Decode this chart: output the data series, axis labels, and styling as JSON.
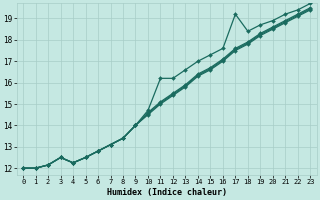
{
  "xlabel": "Humidex (Indice chaleur)",
  "xlim": [
    -0.5,
    23.5
  ],
  "ylim": [
    11.7,
    19.7
  ],
  "xticks": [
    0,
    1,
    2,
    3,
    4,
    5,
    6,
    7,
    8,
    9,
    10,
    11,
    12,
    13,
    14,
    15,
    16,
    17,
    18,
    19,
    20,
    21,
    22,
    23
  ],
  "yticks": [
    12,
    13,
    14,
    15,
    16,
    17,
    18,
    19
  ],
  "bg_color": "#c5e8e2",
  "grid_color": "#a8cdc7",
  "line_color": "#1a6b5f",
  "spike_x": [
    0,
    1,
    2,
    3,
    4,
    5,
    6,
    7,
    8,
    9,
    10,
    11,
    12,
    13,
    14,
    15,
    16,
    17,
    18,
    19,
    20,
    21,
    22,
    23
  ],
  "spike_y": [
    12.0,
    12.0,
    12.15,
    12.5,
    12.25,
    12.5,
    12.8,
    13.1,
    13.4,
    14.0,
    14.7,
    16.2,
    16.2,
    16.6,
    17.0,
    17.3,
    17.6,
    19.2,
    18.4,
    18.7,
    18.9,
    19.2,
    19.4,
    19.7
  ],
  "line2_x": [
    0,
    1,
    2,
    3,
    4,
    5,
    6,
    7,
    8,
    9,
    10,
    11,
    12,
    13,
    14,
    15,
    16,
    17,
    18,
    19,
    20,
    21,
    22,
    23
  ],
  "line2_y": [
    12.0,
    12.0,
    12.15,
    12.5,
    12.25,
    12.5,
    12.8,
    13.1,
    13.4,
    14.0,
    14.6,
    15.1,
    15.5,
    15.9,
    16.4,
    16.7,
    17.1,
    17.6,
    17.9,
    18.3,
    18.6,
    18.9,
    19.2,
    19.5
  ],
  "line3_x": [
    0,
    1,
    2,
    3,
    4,
    5,
    6,
    7,
    8,
    9,
    10,
    11,
    12,
    13,
    14,
    15,
    16,
    17,
    18,
    19,
    20,
    21,
    22,
    23
  ],
  "line3_y": [
    12.0,
    12.0,
    12.15,
    12.5,
    12.25,
    12.5,
    12.8,
    13.1,
    13.4,
    14.0,
    14.55,
    15.05,
    15.45,
    15.85,
    16.35,
    16.65,
    17.05,
    17.55,
    17.85,
    18.25,
    18.55,
    18.85,
    19.15,
    19.45
  ],
  "line4_x": [
    0,
    1,
    2,
    3,
    4,
    5,
    6,
    7,
    8,
    9,
    10,
    11,
    12,
    13,
    14,
    15,
    16,
    17,
    18,
    19,
    20,
    21,
    22,
    23
  ],
  "line4_y": [
    12.0,
    12.0,
    12.15,
    12.5,
    12.25,
    12.5,
    12.8,
    13.1,
    13.4,
    14.0,
    14.5,
    15.0,
    15.4,
    15.8,
    16.3,
    16.6,
    17.0,
    17.5,
    17.8,
    18.2,
    18.5,
    18.8,
    19.1,
    19.4
  ]
}
